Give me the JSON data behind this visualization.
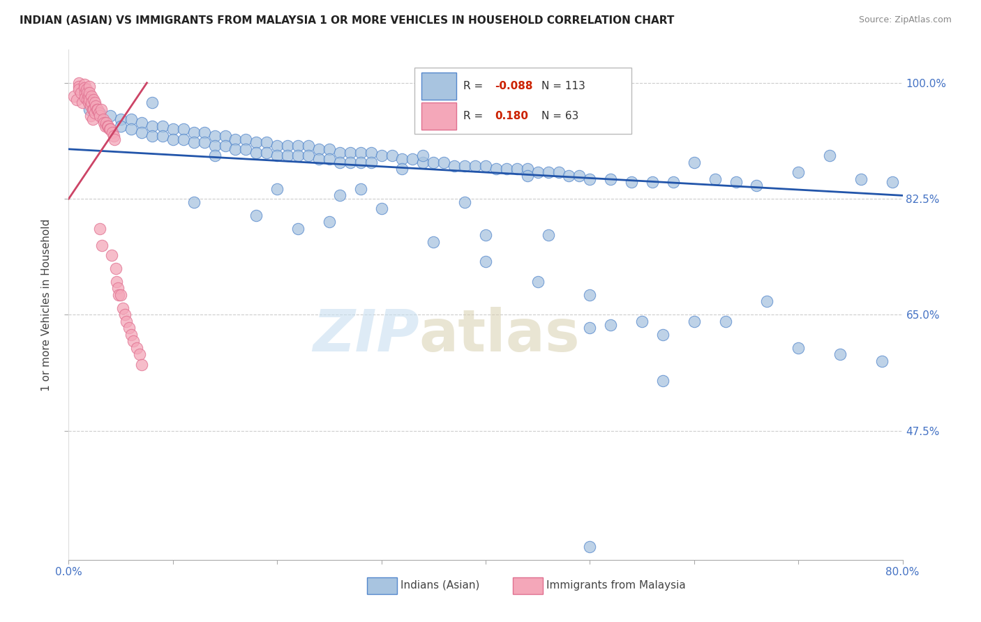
{
  "title": "INDIAN (ASIAN) VS IMMIGRANTS FROM MALAYSIA 1 OR MORE VEHICLES IN HOUSEHOLD CORRELATION CHART",
  "source": "Source: ZipAtlas.com",
  "ylabel": "1 or more Vehicles in Household",
  "xlim": [
    0.0,
    0.8
  ],
  "ylim": [
    0.28,
    1.05
  ],
  "yticks": [
    0.475,
    0.65,
    0.825,
    1.0
  ],
  "ytick_labels": [
    "47.5%",
    "65.0%",
    "82.5%",
    "100.0%"
  ],
  "xticks": [
    0.0,
    0.1,
    0.2,
    0.3,
    0.4,
    0.5,
    0.6,
    0.7,
    0.8
  ],
  "xtick_labels": [
    "0.0%",
    "",
    "",
    "",
    "",
    "",
    "",
    "",
    "80.0%"
  ],
  "grid_color": "#cccccc",
  "background_color": "#ffffff",
  "blue_color": "#a8c4e0",
  "pink_color": "#f4a7b9",
  "blue_edge_color": "#5588cc",
  "pink_edge_color": "#e07090",
  "blue_line_color": "#2255aa",
  "pink_line_color": "#cc4466",
  "legend_R_blue": "-0.088",
  "legend_N_blue": "113",
  "legend_R_pink": "0.180",
  "legend_N_pink": "63",
  "blue_scatter_x": [
    0.02,
    0.03,
    0.04,
    0.05,
    0.05,
    0.06,
    0.06,
    0.07,
    0.07,
    0.08,
    0.08,
    0.09,
    0.09,
    0.1,
    0.1,
    0.11,
    0.11,
    0.12,
    0.12,
    0.13,
    0.13,
    0.14,
    0.14,
    0.15,
    0.15,
    0.16,
    0.16,
    0.17,
    0.17,
    0.18,
    0.18,
    0.19,
    0.19,
    0.2,
    0.2,
    0.21,
    0.21,
    0.22,
    0.22,
    0.23,
    0.23,
    0.24,
    0.24,
    0.25,
    0.25,
    0.26,
    0.26,
    0.27,
    0.27,
    0.28,
    0.28,
    0.29,
    0.29,
    0.3,
    0.31,
    0.32,
    0.33,
    0.34,
    0.35,
    0.36,
    0.37,
    0.38,
    0.39,
    0.4,
    0.41,
    0.42,
    0.43,
    0.44,
    0.45,
    0.46,
    0.47,
    0.48,
    0.49,
    0.5,
    0.52,
    0.54,
    0.56,
    0.58,
    0.6,
    0.62,
    0.64,
    0.66,
    0.7,
    0.73,
    0.76,
    0.79,
    0.12,
    0.18,
    0.25,
    0.3,
    0.35,
    0.4,
    0.45,
    0.5,
    0.55,
    0.08,
    0.14,
    0.2,
    0.26,
    0.32,
    0.38,
    0.44,
    0.5,
    0.57,
    0.22,
    0.28,
    0.34,
    0.4,
    0.46,
    0.52,
    0.57,
    0.6,
    0.63,
    0.67,
    0.7,
    0.74,
    0.78,
    0.5
  ],
  "blue_scatter_y": [
    0.96,
    0.955,
    0.95,
    0.945,
    0.935,
    0.945,
    0.93,
    0.94,
    0.925,
    0.935,
    0.92,
    0.935,
    0.92,
    0.93,
    0.915,
    0.93,
    0.915,
    0.925,
    0.91,
    0.925,
    0.91,
    0.92,
    0.905,
    0.92,
    0.905,
    0.915,
    0.9,
    0.915,
    0.9,
    0.91,
    0.895,
    0.91,
    0.895,
    0.905,
    0.89,
    0.905,
    0.89,
    0.905,
    0.89,
    0.905,
    0.89,
    0.9,
    0.885,
    0.9,
    0.885,
    0.895,
    0.88,
    0.895,
    0.88,
    0.895,
    0.88,
    0.895,
    0.88,
    0.89,
    0.89,
    0.885,
    0.885,
    0.88,
    0.88,
    0.88,
    0.875,
    0.875,
    0.875,
    0.875,
    0.87,
    0.87,
    0.87,
    0.87,
    0.865,
    0.865,
    0.865,
    0.86,
    0.86,
    0.855,
    0.855,
    0.85,
    0.85,
    0.85,
    0.88,
    0.855,
    0.85,
    0.845,
    0.865,
    0.89,
    0.855,
    0.85,
    0.82,
    0.8,
    0.79,
    0.81,
    0.76,
    0.73,
    0.7,
    0.68,
    0.64,
    0.97,
    0.89,
    0.84,
    0.83,
    0.87,
    0.82,
    0.86,
    0.63,
    0.55,
    0.78,
    0.84,
    0.89,
    0.77,
    0.77,
    0.635,
    0.62,
    0.64,
    0.64,
    0.67,
    0.6,
    0.59,
    0.58,
    0.3
  ],
  "pink_scatter_x": [
    0.005,
    0.008,
    0.01,
    0.01,
    0.01,
    0.012,
    0.013,
    0.015,
    0.015,
    0.016,
    0.016,
    0.017,
    0.018,
    0.018,
    0.019,
    0.019,
    0.02,
    0.02,
    0.02,
    0.021,
    0.021,
    0.022,
    0.022,
    0.023,
    0.023,
    0.024,
    0.024,
    0.025,
    0.025,
    0.026,
    0.027,
    0.028,
    0.029,
    0.03,
    0.03,
    0.031,
    0.032,
    0.033,
    0.034,
    0.035,
    0.036,
    0.037,
    0.038,
    0.039,
    0.04,
    0.041,
    0.042,
    0.043,
    0.044,
    0.045,
    0.046,
    0.047,
    0.048,
    0.05,
    0.052,
    0.054,
    0.055,
    0.058,
    0.06,
    0.062,
    0.065,
    0.068,
    0.07
  ],
  "pink_scatter_y": [
    0.98,
    0.975,
    1.0,
    0.995,
    0.99,
    0.985,
    0.97,
    0.998,
    0.992,
    0.985,
    0.978,
    0.99,
    0.985,
    0.975,
    0.98,
    0.97,
    0.995,
    0.985,
    0.975,
    0.965,
    0.95,
    0.98,
    0.97,
    0.96,
    0.945,
    0.975,
    0.96,
    0.97,
    0.955,
    0.965,
    0.96,
    0.96,
    0.955,
    0.95,
    0.78,
    0.96,
    0.755,
    0.945,
    0.94,
    0.935,
    0.94,
    0.935,
    0.935,
    0.93,
    0.93,
    0.74,
    0.925,
    0.92,
    0.915,
    0.72,
    0.7,
    0.69,
    0.68,
    0.68,
    0.66,
    0.65,
    0.64,
    0.63,
    0.62,
    0.61,
    0.6,
    0.59,
    0.575
  ],
  "blue_trendline_x": [
    0.0,
    0.8
  ],
  "blue_trendline_y": [
    0.9,
    0.83
  ],
  "pink_trendline_x": [
    0.0,
    0.075
  ],
  "pink_trendline_y": [
    0.825,
    1.0
  ]
}
